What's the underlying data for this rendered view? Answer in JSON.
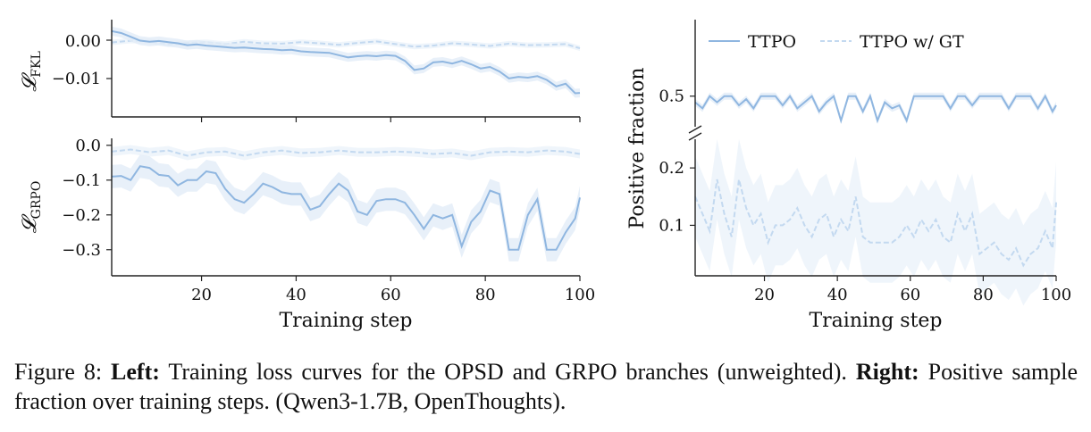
{
  "caption": {
    "figure_label": "Figure 8:",
    "left_bold": "Left:",
    "left_text": "Training loss curves for the OPSD and GRPO branches (unweighted).",
    "right_bold": "Right:",
    "right_text": "Positive sample fraction over training steps. (Qwen3-1.7B, OpenThoughts)."
  },
  "colors": {
    "ttpo": "#8fb6e0",
    "gt": "#c3d9f0",
    "band": "#e2ecf8"
  },
  "chart_data": [
    {
      "type": "line",
      "panel": "top-left",
      "ylabel": "𝓛FKL",
      "ylabel_main": "𝓛",
      "ylabel_sub": "FKL",
      "xlim": [
        1,
        100
      ],
      "ylim": [
        -0.0205,
        0.005
      ],
      "yticks": [
        0.0,
        -0.01
      ],
      "ytick_labels": [
        "0.00",
        "−0.01"
      ],
      "x_tick_labels_shown": false,
      "series": [
        {
          "name": "TTPO",
          "style": "solid",
          "x": [
            1,
            3,
            5,
            7,
            9,
            11,
            13,
            15,
            17,
            19,
            21,
            23,
            25,
            27,
            29,
            31,
            33,
            35,
            37,
            39,
            41,
            43,
            45,
            47,
            49,
            51,
            53,
            55,
            57,
            59,
            61,
            63,
            65,
            67,
            69,
            71,
            73,
            75,
            77,
            79,
            81,
            83,
            85,
            87,
            89,
            91,
            93,
            95,
            97,
            99,
            100
          ],
          "y": [
            0.002,
            0.0015,
            0.0005,
            -0.0005,
            -0.0008,
            -0.0006,
            -0.0009,
            -0.0012,
            -0.0017,
            -0.0015,
            -0.0018,
            -0.002,
            -0.0022,
            -0.0024,
            -0.0023,
            -0.0025,
            -0.0027,
            -0.0028,
            -0.003,
            -0.0029,
            -0.0033,
            -0.0035,
            -0.0036,
            -0.0037,
            -0.0043,
            -0.0049,
            -0.0046,
            -0.0044,
            -0.0046,
            -0.0043,
            -0.0045,
            -0.0058,
            -0.0082,
            -0.0078,
            -0.0062,
            -0.006,
            -0.0065,
            -0.0058,
            -0.0067,
            -0.0078,
            -0.0074,
            -0.0086,
            -0.0104,
            -0.01,
            -0.0102,
            -0.0098,
            -0.0108,
            -0.0125,
            -0.0118,
            -0.0143,
            -0.0142
          ]
        },
        {
          "name": "TTPO w/ GT",
          "style": "dashed",
          "x": [
            1,
            5,
            9,
            13,
            17,
            21,
            25,
            29,
            33,
            37,
            41,
            45,
            49,
            53,
            57,
            61,
            65,
            69,
            73,
            77,
            81,
            85,
            89,
            93,
            97,
            100
          ],
          "y": [
            -0.001,
            -0.0005,
            -0.0007,
            -0.0015,
            -0.0011,
            -0.0009,
            -0.0014,
            -0.0008,
            -0.0012,
            -0.0013,
            -0.0009,
            -0.0012,
            -0.0016,
            -0.0011,
            -0.0007,
            -0.0014,
            -0.0021,
            -0.0018,
            -0.0012,
            -0.0015,
            -0.0019,
            -0.0013,
            -0.0017,
            -0.0016,
            -0.0014,
            -0.0025
          ]
        }
      ]
    },
    {
      "type": "line",
      "panel": "bottom-left",
      "ylabel": "𝓛GRPO",
      "ylabel_main": "𝓛",
      "ylabel_sub": "GRPO",
      "xlabel": "Training step",
      "xlim": [
        1,
        100
      ],
      "ylim": [
        -0.375,
        0.02
      ],
      "yticks": [
        0.0,
        -0.1,
        -0.2,
        -0.3
      ],
      "ytick_labels": [
        "0.0",
        "−0.1",
        "−0.2",
        "−0.3"
      ],
      "xticks": [
        20,
        40,
        60,
        80,
        100
      ],
      "xtick_labels": [
        "20",
        "40",
        "60",
        "80",
        "100"
      ],
      "series": [
        {
          "name": "TTPO",
          "style": "solid",
          "x": [
            1,
            3,
            5,
            7,
            9,
            11,
            13,
            15,
            17,
            19,
            21,
            23,
            25,
            27,
            29,
            31,
            33,
            35,
            37,
            39,
            41,
            43,
            45,
            47,
            49,
            51,
            53,
            55,
            57,
            59,
            61,
            63,
            65,
            67,
            69,
            71,
            73,
            75,
            77,
            79,
            81,
            83,
            85,
            87,
            89,
            91,
            93,
            95,
            97,
            99,
            100
          ],
          "y": [
            -0.09,
            -0.088,
            -0.1,
            -0.06,
            -0.065,
            -0.085,
            -0.088,
            -0.115,
            -0.1,
            -0.1,
            -0.075,
            -0.08,
            -0.125,
            -0.155,
            -0.165,
            -0.14,
            -0.11,
            -0.12,
            -0.135,
            -0.14,
            -0.14,
            -0.185,
            -0.175,
            -0.14,
            -0.11,
            -0.13,
            -0.19,
            -0.2,
            -0.16,
            -0.155,
            -0.155,
            -0.165,
            -0.2,
            -0.24,
            -0.2,
            -0.21,
            -0.2,
            -0.29,
            -0.22,
            -0.19,
            -0.13,
            -0.14,
            -0.3,
            -0.3,
            -0.2,
            -0.155,
            -0.3,
            -0.3,
            -0.25,
            -0.21,
            -0.15
          ]
        },
        {
          "name": "TTPO w/ GT",
          "style": "dashed",
          "x": [
            1,
            5,
            9,
            13,
            17,
            21,
            25,
            29,
            33,
            37,
            41,
            45,
            49,
            53,
            57,
            61,
            65,
            69,
            73,
            77,
            81,
            85,
            89,
            93,
            97,
            100
          ],
          "y": [
            -0.018,
            -0.012,
            -0.02,
            -0.015,
            -0.03,
            -0.02,
            -0.018,
            -0.03,
            -0.02,
            -0.015,
            -0.022,
            -0.02,
            -0.015,
            -0.02,
            -0.02,
            -0.018,
            -0.02,
            -0.025,
            -0.022,
            -0.03,
            -0.02,
            -0.018,
            -0.02,
            -0.015,
            -0.018,
            -0.025
          ]
        }
      ]
    },
    {
      "type": "line",
      "panel": "right",
      "ylabel": "Positive fraction",
      "xlabel": "Training step",
      "xlim": [
        1,
        100
      ],
      "broken_y_axis": true,
      "upper_ylim": [
        0.45,
        0.625
      ],
      "lower_ylim": [
        0.012,
        0.25
      ],
      "yticks_upper": [
        0.5
      ],
      "ytick_labels_upper": [
        "0.5"
      ],
      "yticks_lower": [
        0.2,
        0.1
      ],
      "ytick_labels_lower": [
        "0.2",
        "0.1"
      ],
      "xticks": [
        20,
        40,
        60,
        80,
        100
      ],
      "xtick_labels": [
        "20",
        "40",
        "60",
        "80",
        "100"
      ],
      "legend": {
        "position": "top-left",
        "entries": [
          "TTPO",
          "TTPO w/ GT"
        ]
      },
      "series": [
        {
          "name": "TTPO",
          "style": "solid",
          "axis": "upper",
          "x": [
            1,
            3,
            5,
            7,
            9,
            11,
            13,
            15,
            17,
            19,
            21,
            23,
            25,
            27,
            29,
            31,
            33,
            35,
            37,
            39,
            41,
            43,
            45,
            47,
            49,
            51,
            53,
            55,
            57,
            59,
            61,
            63,
            65,
            67,
            69,
            71,
            73,
            75,
            77,
            79,
            81,
            83,
            85,
            87,
            89,
            91,
            93,
            95,
            97,
            99,
            100
          ],
          "y": [
            0.49,
            0.48,
            0.5,
            0.49,
            0.5,
            0.5,
            0.485,
            0.495,
            0.48,
            0.5,
            0.5,
            0.5,
            0.485,
            0.5,
            0.48,
            0.49,
            0.5,
            0.475,
            0.49,
            0.5,
            0.46,
            0.5,
            0.5,
            0.475,
            0.5,
            0.46,
            0.49,
            0.48,
            0.485,
            0.46,
            0.5,
            0.5,
            0.5,
            0.5,
            0.5,
            0.48,
            0.5,
            0.5,
            0.485,
            0.5,
            0.5,
            0.5,
            0.5,
            0.48,
            0.5,
            0.5,
            0.5,
            0.48,
            0.5,
            0.475,
            0.485
          ]
        },
        {
          "name": "TTPO w/ GT",
          "style": "dashed",
          "axis": "lower",
          "x": [
            1,
            3,
            5,
            7,
            9,
            11,
            13,
            15,
            17,
            19,
            21,
            23,
            25,
            27,
            29,
            31,
            33,
            35,
            37,
            39,
            41,
            43,
            45,
            47,
            49,
            51,
            53,
            55,
            57,
            59,
            61,
            63,
            65,
            67,
            69,
            71,
            73,
            75,
            77,
            79,
            81,
            83,
            85,
            87,
            89,
            91,
            93,
            95,
            97,
            99,
            100
          ],
          "y": [
            0.15,
            0.12,
            0.09,
            0.18,
            0.12,
            0.08,
            0.18,
            0.13,
            0.1,
            0.12,
            0.07,
            0.1,
            0.1,
            0.11,
            0.13,
            0.1,
            0.08,
            0.11,
            0.12,
            0.08,
            0.11,
            0.09,
            0.15,
            0.08,
            0.07,
            0.07,
            0.07,
            0.07,
            0.08,
            0.1,
            0.08,
            0.11,
            0.09,
            0.11,
            0.08,
            0.07,
            0.12,
            0.09,
            0.12,
            0.05,
            0.06,
            0.07,
            0.05,
            0.04,
            0.06,
            0.03,
            0.05,
            0.06,
            0.09,
            0.06,
            0.14
          ]
        }
      ]
    }
  ]
}
